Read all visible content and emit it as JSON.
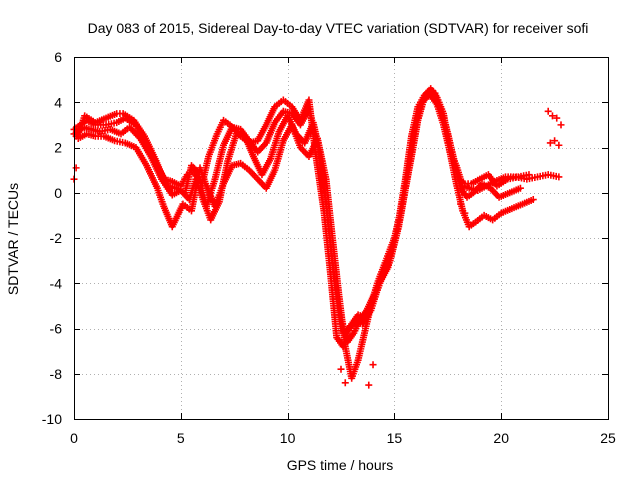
{
  "chart_data": {
    "type": "scatter",
    "title": "Day 083 of 2015, Sidereal Day-to-day VTEC variation (SDTVAR) for receiver sofi",
    "xlabel": "GPS time / hours",
    "ylabel": "SDTVAR / TECUs",
    "xlim": [
      0,
      25
    ],
    "ylim": [
      -10,
      6
    ],
    "xticks": [
      0,
      5,
      10,
      15,
      20,
      25
    ],
    "yticks": [
      -10,
      -8,
      -6,
      -4,
      -2,
      0,
      2,
      4,
      6
    ],
    "grid": true,
    "legend": "none",
    "marker": "+",
    "color": "#ff0000",
    "series": [
      {
        "x": [
          0.0,
          0.3,
          0.5,
          1.0,
          1.5,
          2.0,
          2.3,
          2.8,
          3.3,
          3.8,
          4.2,
          4.6,
          5.0,
          5.3,
          5.5,
          6.0,
          6.3,
          6.7,
          7.0,
          7.3,
          7.8,
          8.2,
          8.6,
          9.0,
          9.4,
          9.8,
          10.2,
          10.6,
          11.0,
          11.3,
          11.7,
          12.0,
          12.3,
          12.6,
          12.9,
          13.2,
          13.5,
          13.9,
          14.3,
          14.7,
          15.1,
          15.5,
          15.8,
          16.1,
          16.4,
          16.7,
          17.0,
          17.3,
          17.6,
          17.9,
          18.2,
          18.5,
          18.9,
          19.3,
          19.7,
          20.2,
          20.7,
          21.2,
          21.7,
          22.2,
          22.7
        ],
        "y": [
          2.6,
          2.8,
          3.4,
          3.1,
          3.3,
          3.5,
          3.5,
          3.2,
          2.5,
          1.5,
          0.6,
          0.5,
          0.3,
          0.8,
          1.0,
          0.4,
          1.6,
          2.6,
          3.2,
          3.0,
          2.5,
          2.2,
          2.3,
          3.0,
          3.8,
          4.1,
          3.8,
          3.2,
          4.1,
          1.8,
          -0.8,
          -3.5,
          -6.4,
          -6.8,
          -6.0,
          -5.7,
          -5.8,
          -5.2,
          -4.0,
          -3.3,
          -1.8,
          0.5,
          2.5,
          3.8,
          4.3,
          4.6,
          4.2,
          3.5,
          1.8,
          1.2,
          0.3,
          0.2,
          0.1,
          0.3,
          0.5,
          0.7,
          0.7,
          0.6,
          0.7,
          0.8,
          0.7
        ]
      },
      {
        "x": [
          0.0,
          0.3,
          0.6,
          1.0,
          1.5,
          2.0,
          2.4,
          2.9,
          3.4,
          3.9,
          4.4,
          4.8,
          5.2,
          5.5,
          5.8,
          6.2,
          6.6,
          7.0,
          7.4,
          7.8,
          8.2,
          8.6,
          9.0,
          9.4,
          9.8,
          10.2,
          10.6,
          11.0,
          11.4,
          11.8,
          12.1,
          12.4,
          12.7,
          13.0,
          13.3,
          13.6,
          14.0,
          14.4,
          14.8,
          15.2,
          15.6,
          15.9,
          16.2,
          16.5,
          16.8,
          17.1,
          17.4,
          17.7,
          18.0,
          18.3,
          18.6,
          19.0,
          19.4,
          19.8,
          20.3,
          20.8,
          21.3
        ],
        "y": [
          2.8,
          3.0,
          3.2,
          3.0,
          3.0,
          3.1,
          3.3,
          3.0,
          2.2,
          1.2,
          0.3,
          0.2,
          0.0,
          1.2,
          0.9,
          -0.6,
          0.6,
          2.1,
          2.9,
          2.8,
          2.3,
          1.8,
          2.2,
          3.1,
          3.6,
          3.5,
          3.0,
          3.7,
          2.2,
          -0.4,
          -3.0,
          -5.2,
          -6.2,
          -5.8,
          -5.4,
          -5.5,
          -4.8,
          -3.8,
          -3.0,
          -1.5,
          0.8,
          2.6,
          3.8,
          4.4,
          4.5,
          3.8,
          3.0,
          1.8,
          0.6,
          0.4,
          0.4,
          0.6,
          0.8,
          0.3,
          0.6,
          0.7,
          0.8
        ]
      },
      {
        "x": [
          0.1,
          0.4,
          0.8,
          1.2,
          1.7,
          2.2,
          2.6,
          3.1,
          3.6,
          4.1,
          4.6,
          5.0,
          5.4,
          5.7,
          6.0,
          6.4,
          6.8,
          7.2,
          7.6,
          8.0,
          8.4,
          8.8,
          9.2,
          9.6,
          10.0,
          10.4,
          10.8,
          11.2,
          11.6,
          11.9,
          12.2,
          12.5,
          12.8,
          13.1,
          13.4,
          13.7,
          14.1,
          14.5,
          14.9,
          15.3,
          15.7,
          16.0,
          16.3,
          16.6,
          16.9,
          17.2,
          17.5,
          17.8,
          18.1,
          18.4,
          18.7,
          19.1,
          19.5,
          19.9,
          20.4,
          20.9
        ],
        "y": [
          2.5,
          2.9,
          2.8,
          2.7,
          2.8,
          2.6,
          2.9,
          2.4,
          1.6,
          0.6,
          -0.1,
          0.1,
          -0.3,
          0.6,
          -0.2,
          -1.2,
          -0.4,
          1.4,
          2.6,
          2.5,
          1.6,
          0.8,
          1.5,
          2.7,
          3.4,
          2.6,
          2.2,
          3.1,
          1.4,
          -1.4,
          -4.0,
          -6.0,
          -6.6,
          -6.2,
          -5.6,
          -5.2,
          -4.4,
          -3.4,
          -2.5,
          -1.0,
          1.2,
          2.9,
          4.0,
          4.3,
          4.4,
          3.6,
          2.6,
          1.4,
          0.2,
          -0.2,
          0.0,
          0.4,
          0.2,
          -0.2,
          0.0,
          0.2
        ]
      },
      {
        "x": [
          0.2,
          0.6,
          1.0,
          1.4,
          1.9,
          2.4,
          2.9,
          3.4,
          3.9,
          4.2,
          4.6,
          5.1,
          5.5,
          5.9,
          6.2,
          6.6,
          7.0,
          7.4,
          7.8,
          8.2,
          8.6,
          9.0,
          9.4,
          9.8,
          10.2,
          10.6,
          11.0,
          11.4,
          11.8,
          12.1,
          12.4,
          12.7,
          13.0,
          13.3,
          13.6,
          13.9,
          14.2,
          14.6,
          15.0,
          15.4,
          15.8,
          16.1,
          16.4,
          16.7,
          17.0,
          17.3,
          17.6,
          17.9,
          18.2,
          18.5,
          18.8,
          19.2,
          19.6,
          20.0,
          20.5,
          21.0,
          21.5
        ],
        "y": [
          2.4,
          2.6,
          2.5,
          2.5,
          2.3,
          2.2,
          2.0,
          1.2,
          0.2,
          -0.6,
          -1.5,
          -0.5,
          -0.8,
          1.1,
          0.3,
          -0.6,
          0.4,
          1.2,
          1.3,
          1.0,
          0.6,
          0.2,
          1.0,
          2.3,
          3.0,
          2.0,
          1.6,
          2.4,
          0.6,
          -2.0,
          -4.5,
          -6.8,
          -8.2,
          -7.4,
          -6.2,
          -5.0,
          -4.0,
          -3.0,
          -2.0,
          -0.4,
          1.6,
          3.2,
          4.2,
          4.3,
          3.9,
          3.0,
          1.8,
          0.4,
          -0.8,
          -1.5,
          -1.3,
          -1.0,
          -1.2,
          -0.9,
          -0.7,
          -0.5,
          -0.3
        ]
      },
      {
        "x": [
          0.0,
          0.1,
          12.5,
          12.7,
          13.8,
          14.0,
          18.1,
          18.3,
          22.2,
          22.4,
          22.6,
          22.8,
          22.3,
          22.5,
          22.7
        ],
        "y": [
          0.6,
          1.1,
          -7.8,
          -8.4,
          -8.5,
          -7.6,
          -0.5,
          -0.9,
          3.6,
          3.4,
          3.3,
          3.0,
          2.2,
          2.3,
          2.1
        ]
      }
    ]
  }
}
